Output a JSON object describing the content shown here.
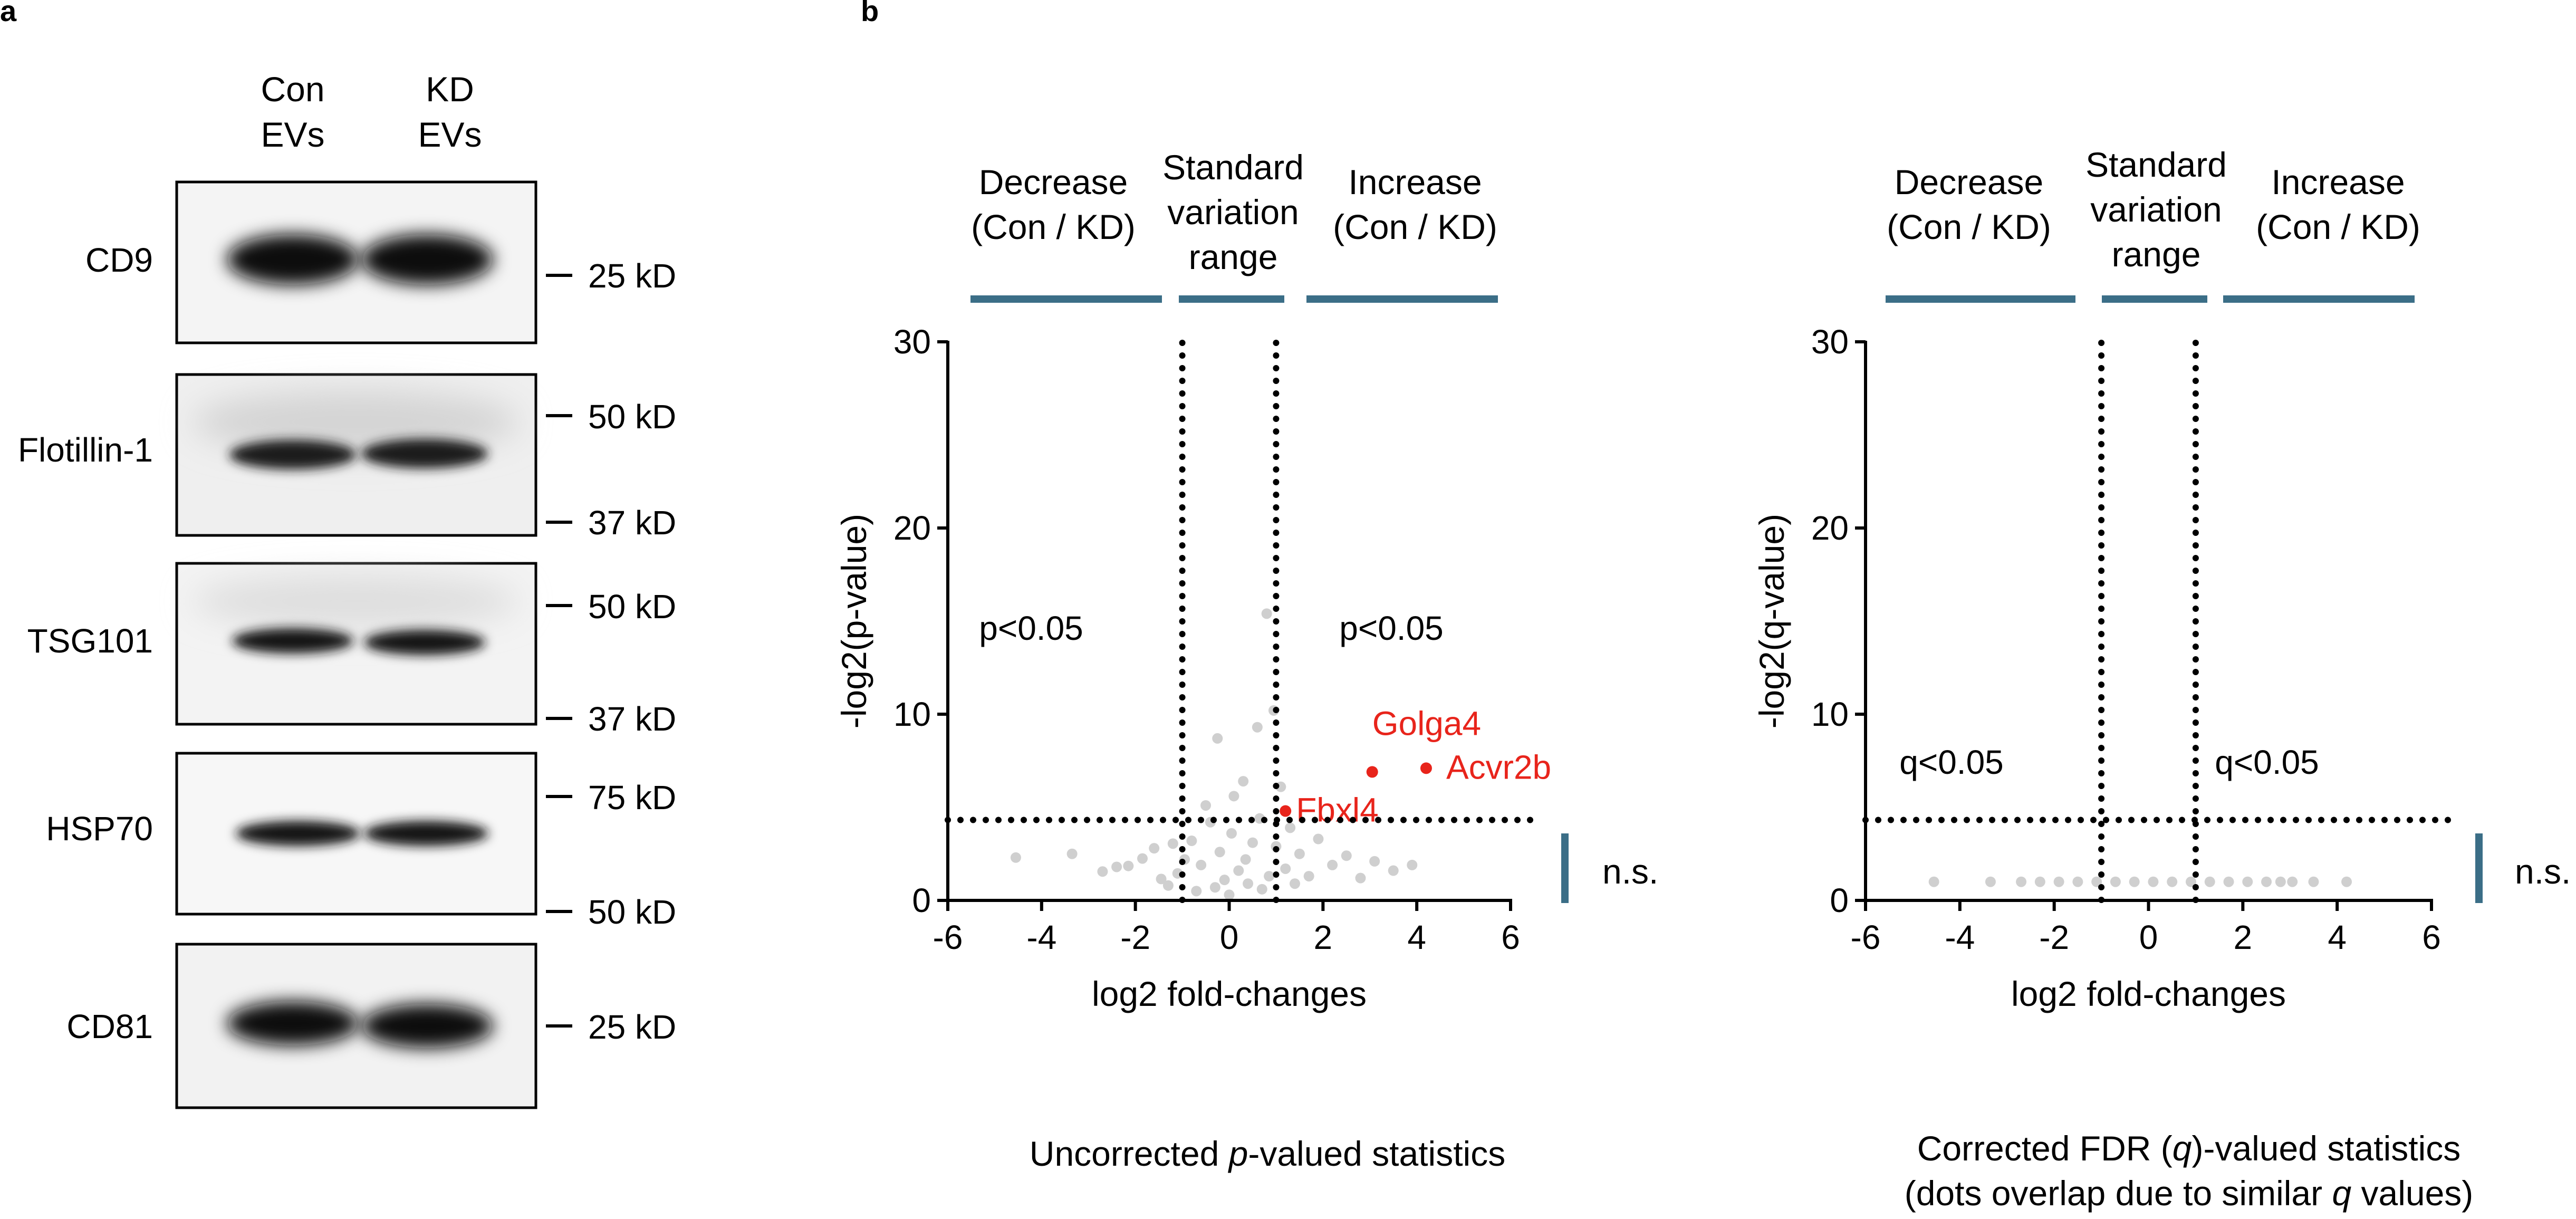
{
  "panel_a": {
    "label": "a",
    "lane_headers": [
      {
        "line1": "Con",
        "line2": "EVs"
      },
      {
        "line1": "KD",
        "line2": "EVs"
      }
    ],
    "blots": [
      {
        "name": "CD9",
        "markers": [
          {
            "text": "25 kD"
          }
        ]
      },
      {
        "name": "Flotillin-1",
        "markers": [
          {
            "text": "50 kD"
          },
          {
            "text": "37 kD"
          }
        ]
      },
      {
        "name": "TSG101",
        "markers": [
          {
            "text": "50 kD"
          },
          {
            "text": "37 kD"
          }
        ]
      },
      {
        "name": "HSP70",
        "markers": [
          {
            "text": "75 kD"
          },
          {
            "text": "50 kD"
          }
        ]
      },
      {
        "name": "CD81",
        "markers": [
          {
            "text": "25 kD"
          }
        ]
      }
    ]
  },
  "panel_b": {
    "label": "b",
    "region_labels": {
      "decrease": [
        "Decrease",
        "(Con / KD)"
      ],
      "standard": [
        "Standard",
        "variation",
        "range"
      ],
      "increase": [
        "Increase",
        "(Con / KD)"
      ]
    },
    "ns_label": "n.s.",
    "colors": {
      "region_bar": "#3b6e87",
      "points": "#cfcfcf",
      "highlight": "#e8241b"
    }
  },
  "chart_data": [
    {
      "type": "scatter",
      "title": "Uncorrected p-valued statistics",
      "caption": {
        "before": "Uncorrected ",
        "italic": "p",
        "after": "-valued statistics"
      },
      "xlabel": "log2 fold-changes",
      "ylabel": "-log2(p-value)",
      "xlim": [
        -6,
        6
      ],
      "ylim": [
        0,
        30
      ],
      "xticks": [
        -6,
        -4,
        -2,
        0,
        2,
        4,
        6
      ],
      "yticks": [
        0,
        10,
        20,
        30
      ],
      "threshold_y": 4.32,
      "threshold_x": [
        -1,
        1
      ],
      "significance_labels": [
        "p<0.05",
        "p<0.05"
      ],
      "significance_label_y": 14,
      "highlighted": [
        {
          "name": "Golga4",
          "x": 3.05,
          "y": 6.9
        },
        {
          "name": "Acvr2b",
          "x": 4.2,
          "y": 7.1
        },
        {
          "name": "Fbxl4",
          "x": 1.2,
          "y": 4.8
        }
      ],
      "series": [
        {
          "name": "proteins",
          "points": [
            [
              -4.55,
              2.3
            ],
            [
              -3.35,
              2.5
            ],
            [
              -2.7,
              1.55
            ],
            [
              -2.4,
              1.8
            ],
            [
              -2.15,
              1.85
            ],
            [
              -1.85,
              2.25
            ],
            [
              -1.6,
              2.8
            ],
            [
              -1.45,
              1.15
            ],
            [
              -1.2,
              3.05
            ],
            [
              -1.1,
              1.45
            ],
            [
              -0.95,
              2.2
            ],
            [
              -0.8,
              3.2
            ],
            [
              -0.6,
              1.9
            ],
            [
              -0.5,
              5.1
            ],
            [
              -0.4,
              4.2
            ],
            [
              -0.3,
              0.7
            ],
            [
              -0.25,
              8.7
            ],
            [
              -0.2,
              2.6
            ],
            [
              -0.1,
              1.1
            ],
            [
              0.0,
              0.3
            ],
            [
              0.05,
              3.6
            ],
            [
              0.1,
              5.6
            ],
            [
              0.2,
              1.6
            ],
            [
              0.3,
              6.4
            ],
            [
              0.35,
              2.2
            ],
            [
              0.4,
              0.9
            ],
            [
              0.5,
              3.1
            ],
            [
              0.6,
              9.3
            ],
            [
              0.65,
              4.4
            ],
            [
              0.8,
              15.4
            ],
            [
              0.85,
              1.3
            ],
            [
              0.95,
              10.2
            ],
            [
              1.0,
              2.9
            ],
            [
              1.1,
              6.1
            ],
            [
              1.2,
              1.7
            ],
            [
              1.3,
              3.9
            ],
            [
              1.5,
              2.5
            ],
            [
              1.7,
              1.3
            ],
            [
              1.9,
              3.3
            ],
            [
              2.2,
              1.9
            ],
            [
              2.5,
              2.4
            ],
            [
              2.8,
              1.2
            ],
            [
              3.1,
              2.1
            ],
            [
              3.5,
              1.6
            ],
            [
              3.9,
              1.9
            ],
            [
              -0.7,
              0.5
            ],
            [
              0.7,
              0.6
            ],
            [
              -1.3,
              0.8
            ],
            [
              1.4,
              0.9
            ]
          ]
        }
      ]
    },
    {
      "type": "scatter",
      "title": "Corrected FDR (q)-valued statistics (dots overlap due to similar q values)",
      "caption": {
        "line1_before": "Corrected FDR (",
        "line1_italic": "q",
        "line1_after": ")-valued statistics",
        "line2_before": "(dots overlap due to similar ",
        "line2_italic": "q",
        "line2_after": " values)"
      },
      "xlabel": "log2 fold-changes",
      "ylabel": "-log2(q-value)",
      "xlim": [
        -6,
        6
      ],
      "ylim": [
        0,
        30
      ],
      "xticks": [
        -6,
        -4,
        -2,
        0,
        2,
        4,
        6
      ],
      "yticks": [
        0,
        10,
        20,
        30
      ],
      "threshold_y": 4.32,
      "threshold_x": [
        -1,
        1
      ],
      "significance_labels": [
        "q<0.05",
        "q<0.05"
      ],
      "significance_label_y": 6.8,
      "series": [
        {
          "name": "proteins",
          "points": [
            [
              -4.55,
              1.0
            ],
            [
              -3.35,
              1.0
            ],
            [
              -2.7,
              1.0
            ],
            [
              -2.3,
              1.0
            ],
            [
              -1.9,
              1.0
            ],
            [
              -1.5,
              1.0
            ],
            [
              -1.1,
              1.0
            ],
            [
              -0.7,
              1.0
            ],
            [
              -0.3,
              1.0
            ],
            [
              0.1,
              1.0
            ],
            [
              0.5,
              1.0
            ],
            [
              0.9,
              1.0
            ],
            [
              1.3,
              1.0
            ],
            [
              1.7,
              1.0
            ],
            [
              2.1,
              1.0
            ],
            [
              2.5,
              1.0
            ],
            [
              2.8,
              1.0
            ],
            [
              3.05,
              1.0
            ],
            [
              3.5,
              1.0
            ],
            [
              4.2,
              1.0
            ]
          ]
        }
      ]
    }
  ]
}
